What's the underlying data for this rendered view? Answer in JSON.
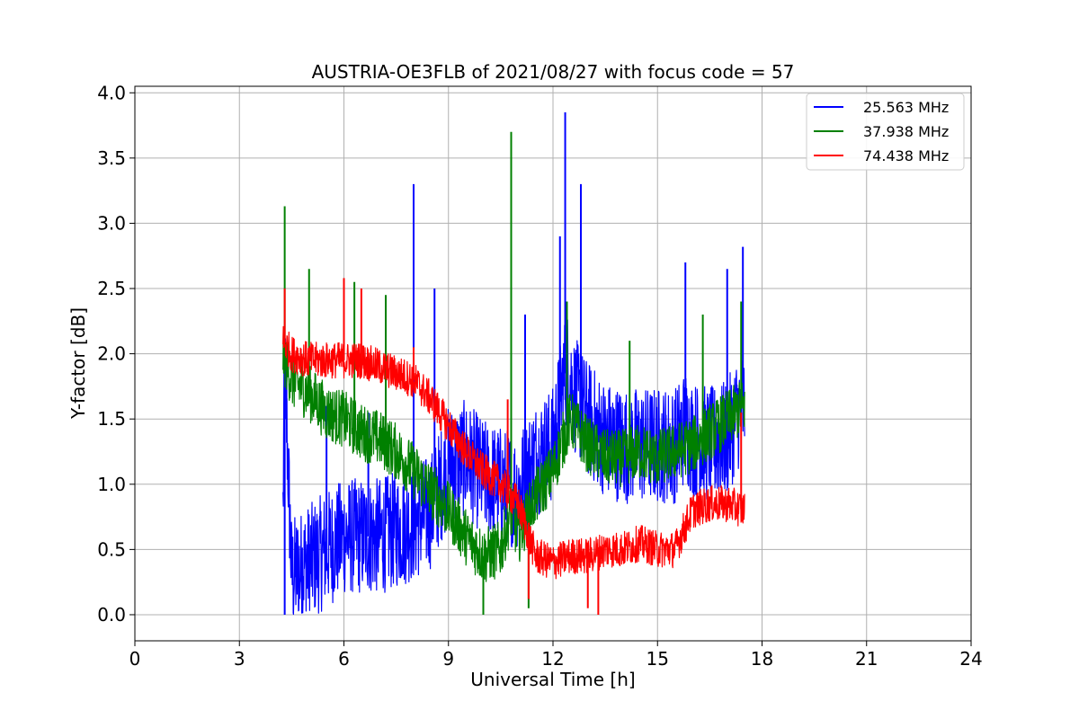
{
  "chart_data": {
    "type": "line",
    "title": "AUSTRIA-OE3FLB of 2021/08/27 with focus code = 57",
    "xlabel": "Universal Time [h]",
    "ylabel": "Y-factor [dB]",
    "xlim": [
      0,
      24
    ],
    "ylim": [
      -0.2,
      4.05
    ],
    "xticks": [
      0,
      3,
      6,
      9,
      12,
      15,
      18,
      21,
      24
    ],
    "xtick_labels": [
      "0",
      "3",
      "6",
      "9",
      "12",
      "15",
      "18",
      "21",
      "24"
    ],
    "yticks": [
      0.0,
      0.5,
      1.0,
      1.5,
      2.0,
      2.5,
      3.0,
      3.5,
      4.0
    ],
    "ytick_labels": [
      "0.0",
      "0.5",
      "1.0",
      "1.5",
      "2.0",
      "2.5",
      "3.0",
      "3.5",
      "4.0"
    ],
    "grid": true,
    "legend_position": "top-right",
    "series": [
      {
        "name": "25.563 MHz",
        "color": "#0000ff",
        "x": [
          4.25,
          4.3,
          4.5,
          5.0,
          5.5,
          6.0,
          6.5,
          7.0,
          7.5,
          8.0,
          8.5,
          9.0,
          9.5,
          10.0,
          10.5,
          11.0,
          11.5,
          12.0,
          12.3,
          12.4,
          12.6,
          12.8,
          13.0,
          13.5,
          14.0,
          14.5,
          15.0,
          15.5,
          15.8,
          16.0,
          16.5,
          17.0,
          17.3,
          17.5
        ],
        "y": [
          0.8,
          1.9,
          0.3,
          0.4,
          0.5,
          0.6,
          0.6,
          0.6,
          0.65,
          0.7,
          0.8,
          1.15,
          1.2,
          1.05,
          1.0,
          0.95,
          1.2,
          1.3,
          1.8,
          1.9,
          1.7,
          1.6,
          1.5,
          1.35,
          1.3,
          1.3,
          1.3,
          1.3,
          1.45,
          1.35,
          1.3,
          1.35,
          1.55,
          1.6
        ],
        "spikes": [
          [
            4.3,
            0.0
          ],
          [
            4.35,
            2.05
          ],
          [
            5.5,
            1.6
          ],
          [
            6.7,
            1.55
          ],
          [
            8.0,
            3.3
          ],
          [
            8.6,
            2.5
          ],
          [
            10.8,
            2.0
          ],
          [
            11.2,
            2.3
          ],
          [
            12.2,
            2.9
          ],
          [
            12.35,
            3.85
          ],
          [
            12.8,
            3.3
          ],
          [
            15.8,
            2.7
          ],
          [
            17.0,
            2.65
          ],
          [
            17.45,
            2.82
          ]
        ]
      },
      {
        "name": "37.938 MHz",
        "color": "#008000",
        "x": [
          4.25,
          4.5,
          5.0,
          5.5,
          6.0,
          6.5,
          7.0,
          7.5,
          8.0,
          8.5,
          9.0,
          9.5,
          10.0,
          10.5,
          10.8,
          11.0,
          11.5,
          12.0,
          12.3,
          12.5,
          13.0,
          13.5,
          14.0,
          14.5,
          15.0,
          15.5,
          16.0,
          16.5,
          17.0,
          17.5
        ],
        "y": [
          2.0,
          1.8,
          1.7,
          1.55,
          1.5,
          1.4,
          1.35,
          1.25,
          1.1,
          0.95,
          0.8,
          0.6,
          0.45,
          0.5,
          0.8,
          0.6,
          0.9,
          1.1,
          1.35,
          1.5,
          1.3,
          1.2,
          1.2,
          1.25,
          1.2,
          1.25,
          1.3,
          1.4,
          1.5,
          1.6
        ],
        "spikes": [
          [
            4.3,
            3.13
          ],
          [
            5.0,
            2.65
          ],
          [
            6.3,
            2.55
          ],
          [
            7.2,
            2.45
          ],
          [
            10.0,
            0.0
          ],
          [
            10.8,
            3.7
          ],
          [
            11.3,
            0.05
          ],
          [
            12.4,
            2.4
          ],
          [
            14.2,
            2.1
          ],
          [
            16.3,
            2.3
          ],
          [
            17.4,
            2.4
          ]
        ]
      },
      {
        "name": "74.438 MHz",
        "color": "#ff0000",
        "x": [
          4.25,
          4.5,
          5.0,
          5.5,
          6.0,
          6.5,
          7.0,
          7.5,
          8.0,
          8.5,
          9.0,
          9.5,
          10.0,
          10.5,
          11.0,
          11.5,
          12.0,
          12.5,
          13.0,
          13.5,
          14.0,
          14.5,
          15.0,
          15.5,
          16.0,
          16.5,
          17.0,
          17.5
        ],
        "y": [
          2.1,
          2.0,
          1.95,
          1.95,
          1.95,
          1.95,
          1.9,
          1.85,
          1.8,
          1.65,
          1.45,
          1.25,
          1.1,
          1.0,
          0.85,
          0.45,
          0.4,
          0.45,
          0.45,
          0.5,
          0.5,
          0.55,
          0.5,
          0.5,
          0.8,
          0.85,
          0.85,
          0.8
        ],
        "spikes": [
          [
            4.3,
            2.5
          ],
          [
            6.0,
            2.58
          ],
          [
            6.5,
            2.5
          ],
          [
            8.0,
            2.05
          ],
          [
            10.7,
            1.65
          ],
          [
            11.3,
            0.12
          ],
          [
            13.0,
            0.05
          ],
          [
            13.3,
            0.0
          ],
          [
            17.4,
            1.55
          ]
        ]
      }
    ]
  }
}
